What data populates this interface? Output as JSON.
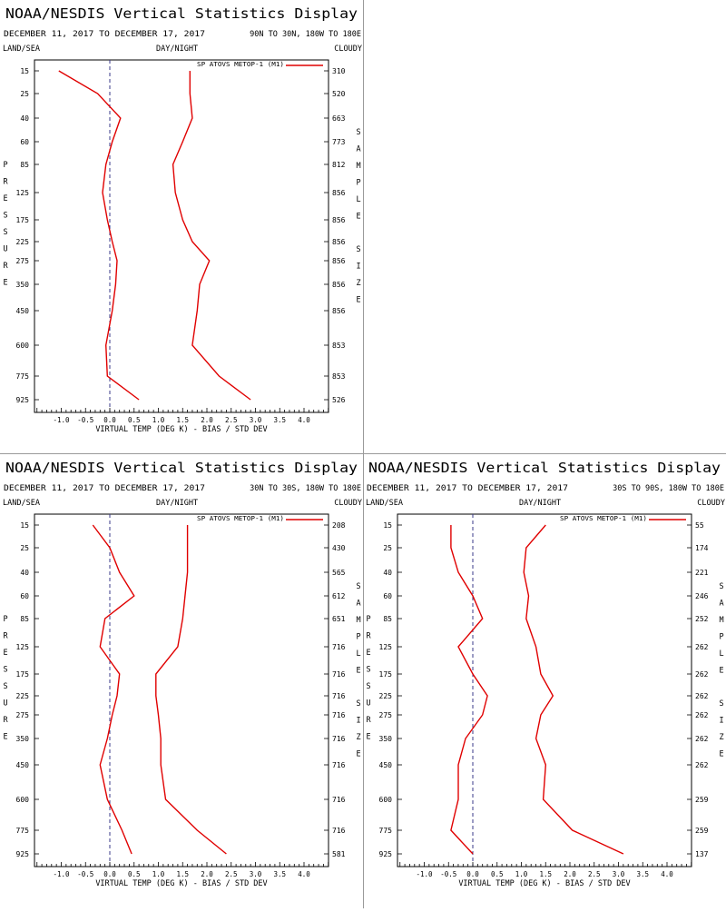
{
  "colors": {
    "series": "#e00000",
    "zero_line": "#3a3a8a",
    "separator": "#9a9a9a"
  },
  "panels": [
    {
      "title": "NOAA/NESDIS Vertical Statistics Display",
      "date_range": "DECEMBER 11, 2017 TO DECEMBER 17, 2017",
      "region": "90N TO 30N, 180W TO 180E",
      "label_land": "LAND/SEA",
      "label_daynight": "DAY/NIGHT",
      "label_cloudy": "CLOUDY",
      "legend": "SP ATOVS METOP-1 (M1)",
      "left_axis_title": "PRESSURE",
      "right_axis_title": "SAMPLE SIZE",
      "xaxis_label": "VIRTUAL TEMP (DEG K) - BIAS / STD DEV",
      "xticks": [
        "-1.0",
        "-0.5",
        "0.0",
        "0.5",
        "1.0",
        "1.5",
        "2.0",
        "2.5",
        "3.0",
        "3.5",
        "4.0"
      ],
      "pressure": [
        "15",
        "25",
        "40",
        "60",
        "85",
        "125",
        "175",
        "225",
        "275",
        "350",
        "450",
        "600",
        "775",
        "925"
      ],
      "sample_size": [
        "310",
        "520",
        "663",
        "773",
        "812",
        "856",
        "856",
        "856",
        "856",
        "856",
        "856",
        "853",
        "853",
        "526"
      ]
    },
    {
      "title": "NOAA/NESDIS Vertical Statistics Display",
      "date_range": "DECEMBER 11, 2017 TO DECEMBER 17, 2017",
      "region": "30N TO 30S, 180W TO 180E",
      "label_land": "LAND/SEA",
      "label_daynight": "DAY/NIGHT",
      "label_cloudy": "CLOUDY",
      "legend": "SP ATOVS METOP-1 (M1)",
      "left_axis_title": "PRESSURE",
      "right_axis_title": "SAMPLE SIZE",
      "xaxis_label": "VIRTUAL TEMP (DEG K) - BIAS / STD DEV",
      "xticks": [
        "-1.0",
        "-0.5",
        "0.0",
        "0.5",
        "1.0",
        "1.5",
        "2.0",
        "2.5",
        "3.0",
        "3.5",
        "4.0"
      ],
      "pressure": [
        "15",
        "25",
        "40",
        "60",
        "85",
        "125",
        "175",
        "225",
        "275",
        "350",
        "450",
        "600",
        "775",
        "925"
      ],
      "sample_size": [
        "208",
        "430",
        "565",
        "612",
        "651",
        "716",
        "716",
        "716",
        "716",
        "716",
        "716",
        "716",
        "716",
        "581"
      ]
    },
    {
      "title": "NOAA/NESDIS Vertical Statistics Display",
      "date_range": "DECEMBER 11, 2017 TO DECEMBER 17, 2017",
      "region": "30S TO 90S, 180W TO 180E",
      "label_land": "LAND/SEA",
      "label_daynight": "DAY/NIGHT",
      "label_cloudy": "CLOUDY",
      "legend": "SP ATOVS METOP-1 (M1)",
      "left_axis_title": "PRESSURE",
      "right_axis_title": "SAMPLE SIZE",
      "xaxis_label": "VIRTUAL TEMP (DEG K) - BIAS / STD DEV",
      "xticks": [
        "-1.0",
        "-0.5",
        "0.0",
        "0.5",
        "1.0",
        "1.5",
        "2.0",
        "2.5",
        "3.0",
        "3.5",
        "4.0"
      ],
      "pressure": [
        "15",
        "25",
        "40",
        "60",
        "85",
        "125",
        "175",
        "225",
        "275",
        "350",
        "450",
        "600",
        "775",
        "925"
      ],
      "sample_size": [
        "55",
        "174",
        "221",
        "246",
        "252",
        "262",
        "262",
        "262",
        "262",
        "262",
        "262",
        "259",
        "259",
        "137"
      ]
    }
  ],
  "chart_data": [
    {
      "type": "line",
      "title": "NOAA/NESDIS Vertical Statistics Display",
      "xlabel": "VIRTUAL TEMP (DEG K) - BIAS / STD DEV",
      "ylabel": "PRESSURE",
      "xlim": [
        -1.5,
        4.5
      ],
      "pressure_levels": [
        15,
        25,
        40,
        60,
        85,
        125,
        175,
        225,
        275,
        350,
        450,
        600,
        775,
        925
      ],
      "series": [
        {
          "name": "BIAS",
          "values": [
            -1.05,
            -0.25,
            0.22,
            0.05,
            -0.08,
            -0.15,
            -0.05,
            0.05,
            0.15,
            0.12,
            0.05,
            -0.08,
            -0.05,
            0.6
          ]
        },
        {
          "name": "STD DEV",
          "values": [
            1.65,
            1.65,
            1.7,
            1.5,
            1.3,
            1.35,
            1.5,
            1.7,
            2.05,
            1.85,
            1.8,
            1.7,
            2.25,
            2.9
          ]
        }
      ]
    },
    {
      "type": "line",
      "title": "NOAA/NESDIS Vertical Statistics Display",
      "xlabel": "VIRTUAL TEMP (DEG K) - BIAS / STD DEV",
      "ylabel": "PRESSURE",
      "xlim": [
        -1.5,
        4.5
      ],
      "pressure_levels": [
        15,
        25,
        40,
        60,
        85,
        125,
        175,
        225,
        275,
        350,
        450,
        600,
        775,
        925
      ],
      "series": [
        {
          "name": "BIAS",
          "values": [
            -0.35,
            0.0,
            0.2,
            0.5,
            -0.1,
            -0.2,
            0.2,
            0.15,
            0.05,
            -0.05,
            -0.2,
            -0.05,
            0.25,
            0.45
          ]
        },
        {
          "name": "STD DEV",
          "values": [
            1.6,
            1.6,
            1.6,
            1.55,
            1.5,
            1.4,
            0.95,
            0.95,
            1.0,
            1.05,
            1.05,
            1.15,
            1.8,
            2.4
          ]
        }
      ]
    },
    {
      "type": "line",
      "title": "NOAA/NESDIS Vertical Statistics Display",
      "xlabel": "VIRTUAL TEMP (DEG K) - BIAS / STD DEV",
      "ylabel": "PRESSURE",
      "xlim": [
        -1.5,
        4.5
      ],
      "pressure_levels": [
        15,
        25,
        40,
        60,
        85,
        125,
        175,
        225,
        275,
        350,
        450,
        600,
        775,
        925
      ],
      "series": [
        {
          "name": "BIAS",
          "values": [
            -0.45,
            -0.45,
            -0.3,
            0.0,
            0.2,
            -0.3,
            0.0,
            0.3,
            0.2,
            -0.15,
            -0.3,
            -0.3,
            -0.45,
            0.0
          ]
        },
        {
          "name": "STD DEV",
          "values": [
            1.5,
            1.1,
            1.05,
            1.15,
            1.1,
            1.3,
            1.4,
            1.65,
            1.4,
            1.3,
            1.5,
            1.45,
            2.05,
            3.1
          ]
        }
      ]
    }
  ]
}
